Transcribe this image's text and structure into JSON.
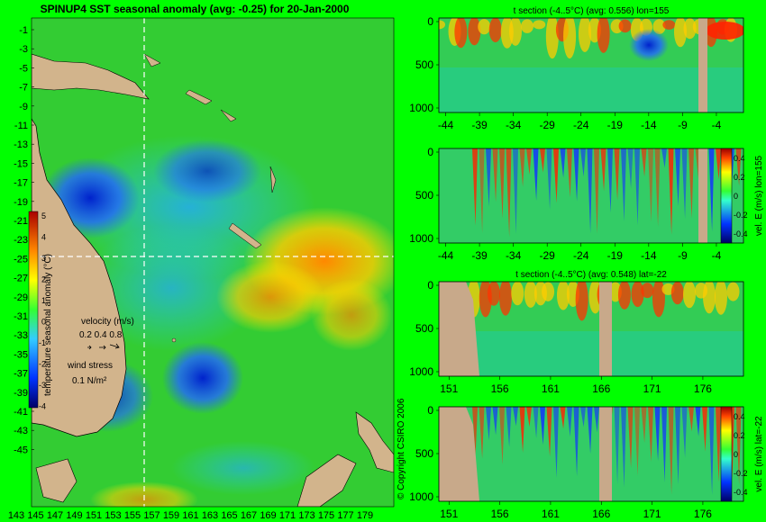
{
  "map": {
    "title": "SPINUP4 SST seasonal anomaly (avg: -0.25) for 20-Jan-2000",
    "lat_ticks": [
      "-1",
      "-3",
      "-5",
      "-7",
      "-9",
      "-11",
      "-13",
      "-15",
      "-17",
      "-19",
      "-21",
      "-23",
      "-25",
      "-27",
      "-29",
      "-31",
      "-33",
      "-35",
      "-37",
      "-39",
      "-41",
      "-43",
      "-45"
    ],
    "lon_ticks": [
      "143",
      "145",
      "147",
      "149",
      "151",
      "153",
      "155",
      "157",
      "159",
      "161",
      "163",
      "165",
      "167",
      "169",
      "171",
      "173",
      "175",
      "177",
      "179"
    ],
    "colorbar_ticks": [
      "5",
      "4",
      "3",
      "2",
      "1",
      "0",
      "-1",
      "-2",
      "-3",
      "-4"
    ],
    "colorbar_label": "temperature seasonal anomaly (°C)",
    "velocity_legend": {
      "title": "velocity (m/s)",
      "values": "0.2 0.4 0.8"
    },
    "wind_legend": {
      "title": "wind stress",
      "value": "0.1 N/m²"
    },
    "copyright": "© Copyright CSIRO 2006",
    "section_lon": 155,
    "section_lat": -22
  },
  "colors": {
    "background": "#00ff00",
    "land": "#d2b48c",
    "sea_warm": "#ff2200",
    "sea_cool": "#0044ff",
    "sea_neutral": "#33cc33"
  },
  "chart_data": [
    {
      "type": "heatmap",
      "title": "t section (-4..5°C) (avg: 0.556) lon=155",
      "x_ticks": [
        "-44",
        "-39",
        "-34",
        "-29",
        "-24",
        "-19",
        "-14",
        "-9",
        "-4"
      ],
      "y_ticks": [
        "0",
        "500",
        "1000"
      ],
      "xlim": [
        -45,
        0
      ],
      "ylim": [
        1050,
        0
      ]
    },
    {
      "type": "heatmap",
      "title": "",
      "x_ticks": [
        "-44",
        "-39",
        "-34",
        "-29",
        "-24",
        "-19",
        "-14",
        "-9",
        "-4"
      ],
      "y_ticks": [
        "0",
        "500",
        "1000"
      ],
      "colorbar_ticks": [
        "0.4",
        "0.2",
        "0",
        "-0.2",
        "-0.4"
      ],
      "colorbar_label": "vel. E (m/s) lon=155",
      "xlim": [
        -45,
        0
      ],
      "ylim": [
        1050,
        0
      ]
    },
    {
      "type": "heatmap",
      "title": "t section (-4..5°C) (avg: 0.548) lat=-22",
      "x_ticks": [
        "151",
        "156",
        "161",
        "166",
        "171",
        "176"
      ],
      "y_ticks": [
        "0",
        "500",
        "1000"
      ],
      "xlim": [
        150,
        180
      ],
      "ylim": [
        1050,
        0
      ]
    },
    {
      "type": "heatmap",
      "title": "",
      "x_ticks": [
        "151",
        "156",
        "161",
        "166",
        "171",
        "176"
      ],
      "y_ticks": [
        "0",
        "500",
        "1000"
      ],
      "colorbar_ticks": [
        "0.4",
        "0.2",
        "0",
        "-0.2",
        "-0.4"
      ],
      "colorbar_label": "vel. E (m/s) lat=-22",
      "xlim": [
        150,
        180
      ],
      "ylim": [
        1050,
        0
      ]
    }
  ]
}
